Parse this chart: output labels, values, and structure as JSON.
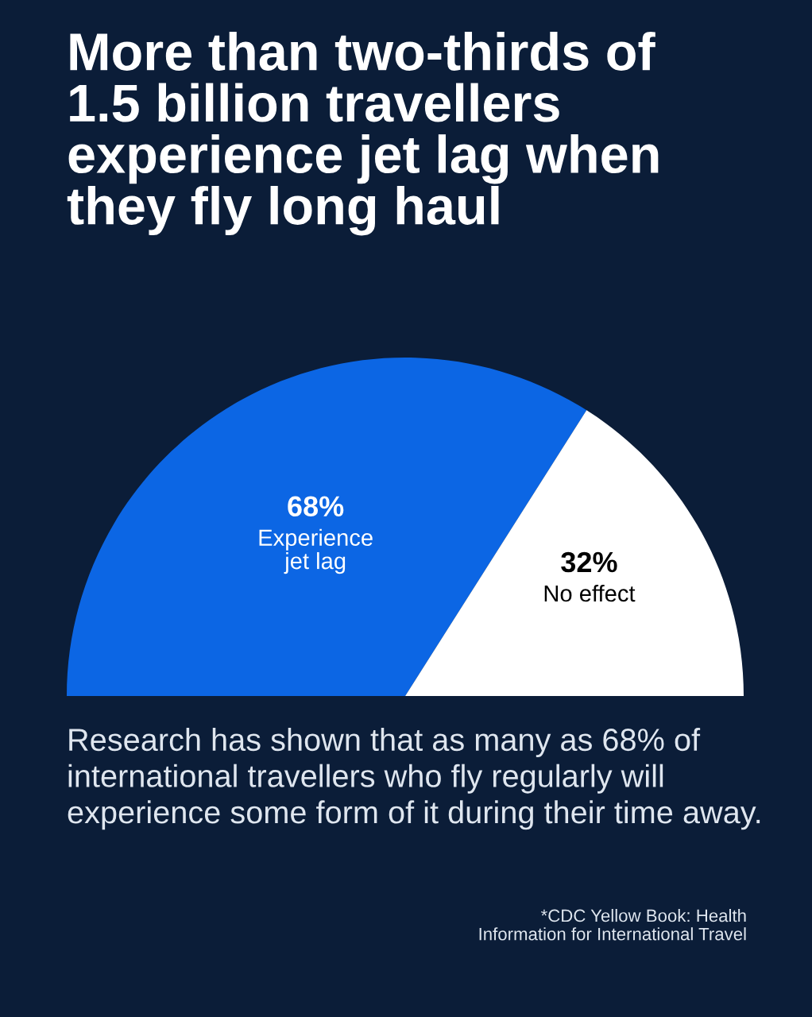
{
  "chart_data": {
    "type": "pie",
    "title": "More than two-thirds of\n1.5 billion travellers\nexperience jet lag when\nthey fly long haul",
    "categories": [
      "Experience\njet lag",
      "No effect"
    ],
    "values": [
      68,
      32
    ],
    "colors": [
      "#0c66e4",
      "#ffffff"
    ],
    "value_labels": [
      "68%",
      "32%"
    ],
    "annotations": [
      "Research has shown that as many as 68% of\ninternational travellers who fly regularly will\nexperience some form of it during their time away.",
      "*CDC Yellow Book: Health\nInformation for International Travel"
    ]
  }
}
